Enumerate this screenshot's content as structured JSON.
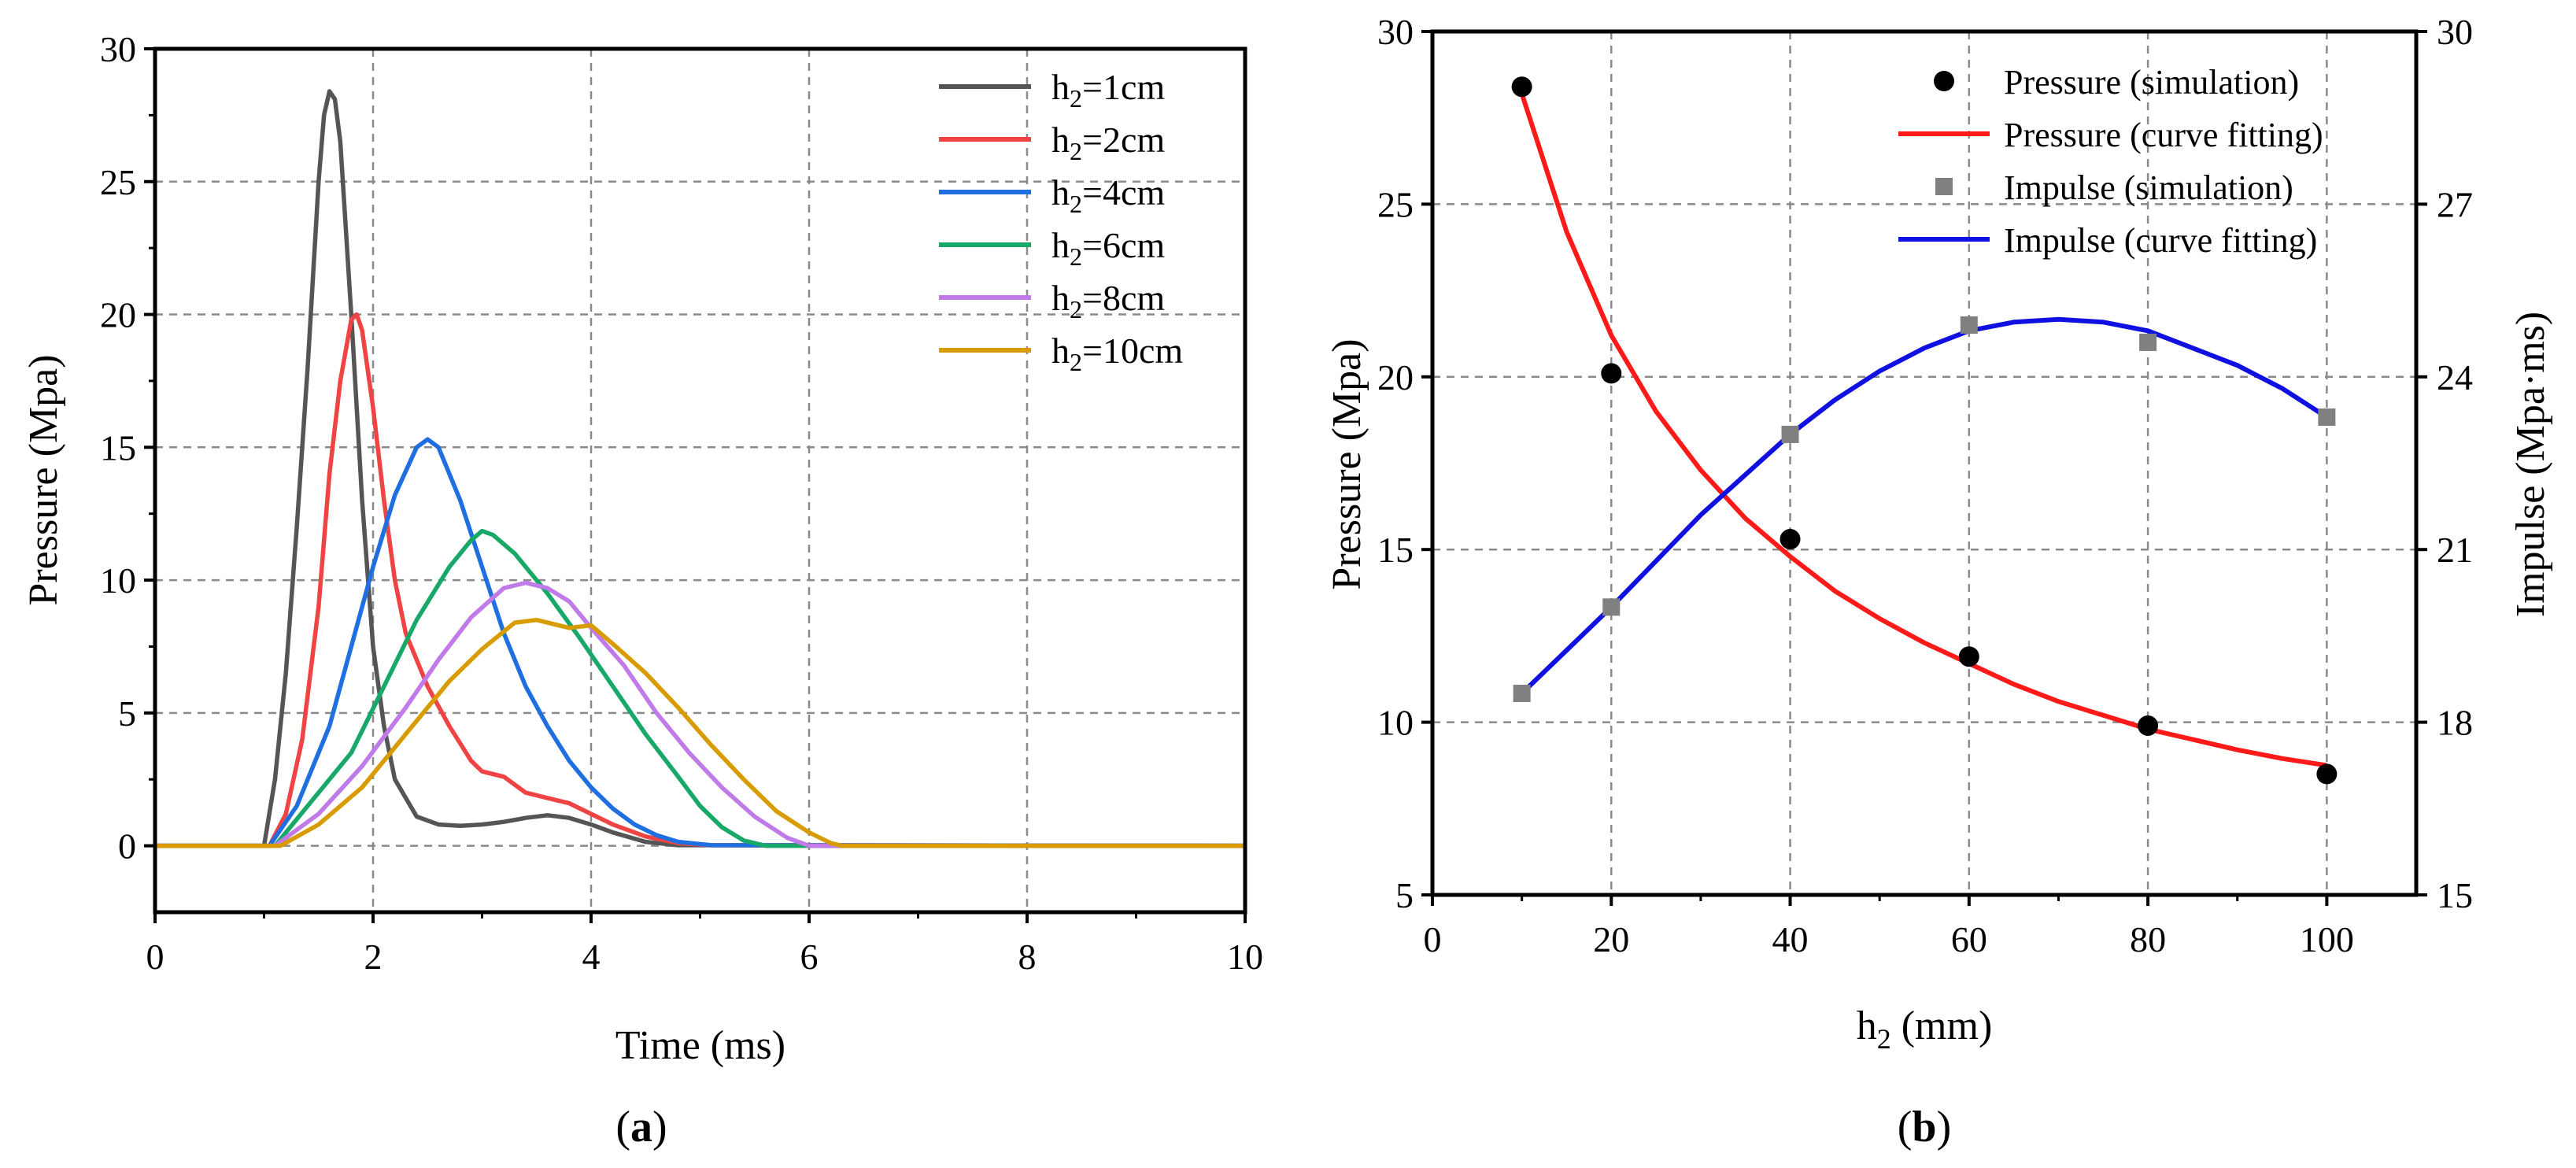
{
  "chart_data": [
    {
      "panel": "a",
      "type": "line",
      "panel_label": "a",
      "xlabel": "Time (ms)",
      "ylabel": "Pressure (Mpa)",
      "xlim": [
        0,
        10
      ],
      "ylim": [
        -2.5,
        30
      ],
      "xticks": [
        0,
        2,
        4,
        6,
        8,
        10
      ],
      "yticks": [
        0,
        5,
        10,
        15,
        20,
        25,
        30
      ],
      "grid": true,
      "legend_position": "top-right",
      "series": [
        {
          "name_main": "h",
          "name_sub": "2",
          "name_tail": "=1cm",
          "color": "#555555",
          "x": [
            0,
            1.0,
            1.1,
            1.2,
            1.3,
            1.4,
            1.5,
            1.55,
            1.6,
            1.65,
            1.7,
            1.8,
            1.9,
            2.0,
            2.1,
            2.2,
            2.4,
            2.6,
            2.8,
            3.0,
            3.2,
            3.4,
            3.6,
            3.8,
            4.0,
            4.2,
            4.5,
            4.8,
            10
          ],
          "y": [
            0,
            0,
            2.5,
            6.5,
            12,
            18,
            25,
            27.5,
            28.4,
            28.1,
            26.5,
            20,
            13,
            7.5,
            4.5,
            2.5,
            1.1,
            0.8,
            0.75,
            0.8,
            0.9,
            1.05,
            1.15,
            1.05,
            0.8,
            0.5,
            0.15,
            0.02,
            0
          ]
        },
        {
          "name_main": "h",
          "name_sub": "2",
          "name_tail": "=2cm",
          "color": "#f04343",
          "x": [
            0,
            1.05,
            1.2,
            1.35,
            1.5,
            1.6,
            1.7,
            1.8,
            1.85,
            1.9,
            2.0,
            2.1,
            2.2,
            2.3,
            2.5,
            2.7,
            2.9,
            3.0,
            3.2,
            3.4,
            3.6,
            3.8,
            4.0,
            4.2,
            4.5,
            4.8,
            5.1,
            10
          ],
          "y": [
            0,
            0,
            1.2,
            4,
            9,
            14,
            17.5,
            19.8,
            20.0,
            19.4,
            16.5,
            13,
            10,
            8,
            6,
            4.5,
            3.2,
            2.8,
            2.6,
            2.0,
            1.8,
            1.6,
            1.2,
            0.8,
            0.35,
            0.1,
            0.02,
            0
          ]
        },
        {
          "name_main": "h",
          "name_sub": "2",
          "name_tail": "=4cm",
          "color": "#1f6fe0",
          "x": [
            0,
            1.05,
            1.3,
            1.6,
            1.8,
            2.0,
            2.2,
            2.4,
            2.5,
            2.6,
            2.8,
            3.0,
            3.2,
            3.4,
            3.6,
            3.8,
            4.0,
            4.2,
            4.4,
            4.6,
            4.8,
            5.1,
            10
          ],
          "y": [
            0,
            0,
            1.5,
            4.5,
            7.5,
            10.5,
            13.2,
            15.0,
            15.3,
            15.0,
            13.0,
            10.5,
            8,
            6,
            4.5,
            3.2,
            2.2,
            1.4,
            0.8,
            0.4,
            0.15,
            0.02,
            0
          ]
        },
        {
          "name_main": "h",
          "name_sub": "2",
          "name_tail": "=6cm",
          "color": "#18a868",
          "x": [
            0,
            1.1,
            1.4,
            1.8,
            2.1,
            2.4,
            2.7,
            2.9,
            3.0,
            3.1,
            3.3,
            3.6,
            3.9,
            4.2,
            4.5,
            4.8,
            5.0,
            5.2,
            5.4,
            5.6,
            10
          ],
          "y": [
            0,
            0,
            1.5,
            3.5,
            6,
            8.5,
            10.5,
            11.5,
            11.85,
            11.7,
            11,
            9.5,
            7.8,
            6,
            4.2,
            2.6,
            1.5,
            0.7,
            0.2,
            0,
            0
          ]
        },
        {
          "name_main": "h",
          "name_sub": "2",
          "name_tail": "=8cm",
          "color": "#c07be8",
          "x": [
            0,
            1.1,
            1.5,
            1.9,
            2.3,
            2.6,
            2.9,
            3.2,
            3.4,
            3.6,
            3.8,
            4.0,
            4.3,
            4.6,
            4.9,
            5.2,
            5.5,
            5.8,
            6.0,
            10
          ],
          "y": [
            0,
            0,
            1.2,
            3,
            5.2,
            7,
            8.6,
            9.7,
            9.9,
            9.7,
            9.2,
            8.2,
            6.8,
            5.0,
            3.5,
            2.2,
            1.1,
            0.3,
            0,
            0
          ]
        },
        {
          "name_main": "h",
          "name_sub": "2",
          "name_tail": "=10cm",
          "color": "#d89b00",
          "x": [
            0,
            1.15,
            1.5,
            1.9,
            2.3,
            2.7,
            3.0,
            3.3,
            3.5,
            3.8,
            4.0,
            4.2,
            4.5,
            4.8,
            5.1,
            5.4,
            5.7,
            6.0,
            6.2,
            6.3,
            10
          ],
          "y": [
            0,
            0,
            0.8,
            2.2,
            4.2,
            6.2,
            7.4,
            8.4,
            8.5,
            8.2,
            8.3,
            7.6,
            6.5,
            5.2,
            3.8,
            2.5,
            1.3,
            0.5,
            0.1,
            0,
            0
          ]
        }
      ]
    },
    {
      "panel": "b",
      "type": "scatter",
      "panel_label": "b",
      "xlabel_main": "h",
      "xlabel_sub": "2",
      "xlabel_tail": " (mm)",
      "ylabel": "Pressure (Mpa)",
      "y2label": "Impulse (Mpa·ms)",
      "xlim": [
        0,
        110
      ],
      "ylim": [
        5,
        30
      ],
      "y2lim": [
        15,
        30
      ],
      "xticks": [
        0,
        20,
        40,
        60,
        80,
        100
      ],
      "yticks": [
        5,
        10,
        15,
        20,
        25,
        30
      ],
      "y2ticks": [
        15,
        18,
        21,
        24,
        27,
        30
      ],
      "grid": true,
      "legend_position": "top-right",
      "pressure_simulation": {
        "name": "Pressure (simulation)",
        "color": "#000000",
        "x": [
          10,
          20,
          40,
          60,
          80,
          100
        ],
        "y": [
          28.4,
          20.1,
          15.3,
          11.9,
          9.9,
          8.5
        ]
      },
      "pressure_fit": {
        "name": "Pressure (curve fitting)",
        "color": "#ff1a1a",
        "x": [
          10,
          15,
          20,
          25,
          30,
          35,
          40,
          45,
          50,
          55,
          60,
          65,
          70,
          75,
          80,
          85,
          90,
          95,
          100
        ],
        "y": [
          28.2,
          24.2,
          21.2,
          19.0,
          17.3,
          15.9,
          14.8,
          13.8,
          13.0,
          12.3,
          11.7,
          11.1,
          10.6,
          10.2,
          9.8,
          9.5,
          9.2,
          8.95,
          8.75
        ]
      },
      "impulse_simulation": {
        "name": "Impulse (simulation)",
        "color": "#808080",
        "x": [
          10,
          20,
          40,
          60,
          80,
          100
        ],
        "y": [
          18.5,
          20.0,
          23.0,
          24.9,
          24.6,
          23.3
        ]
      },
      "impulse_fit": {
        "name": "Impulse (curve fitting)",
        "color": "#1010e0",
        "x": [
          10,
          15,
          20,
          25,
          30,
          35,
          40,
          45,
          50,
          55,
          60,
          65,
          70,
          75,
          80,
          85,
          90,
          95,
          100
        ],
        "y": [
          18.5,
          19.25,
          20.0,
          20.8,
          21.6,
          22.3,
          23.0,
          23.6,
          24.1,
          24.5,
          24.8,
          24.95,
          25.0,
          24.95,
          24.8,
          24.5,
          24.2,
          23.8,
          23.3
        ]
      }
    }
  ]
}
